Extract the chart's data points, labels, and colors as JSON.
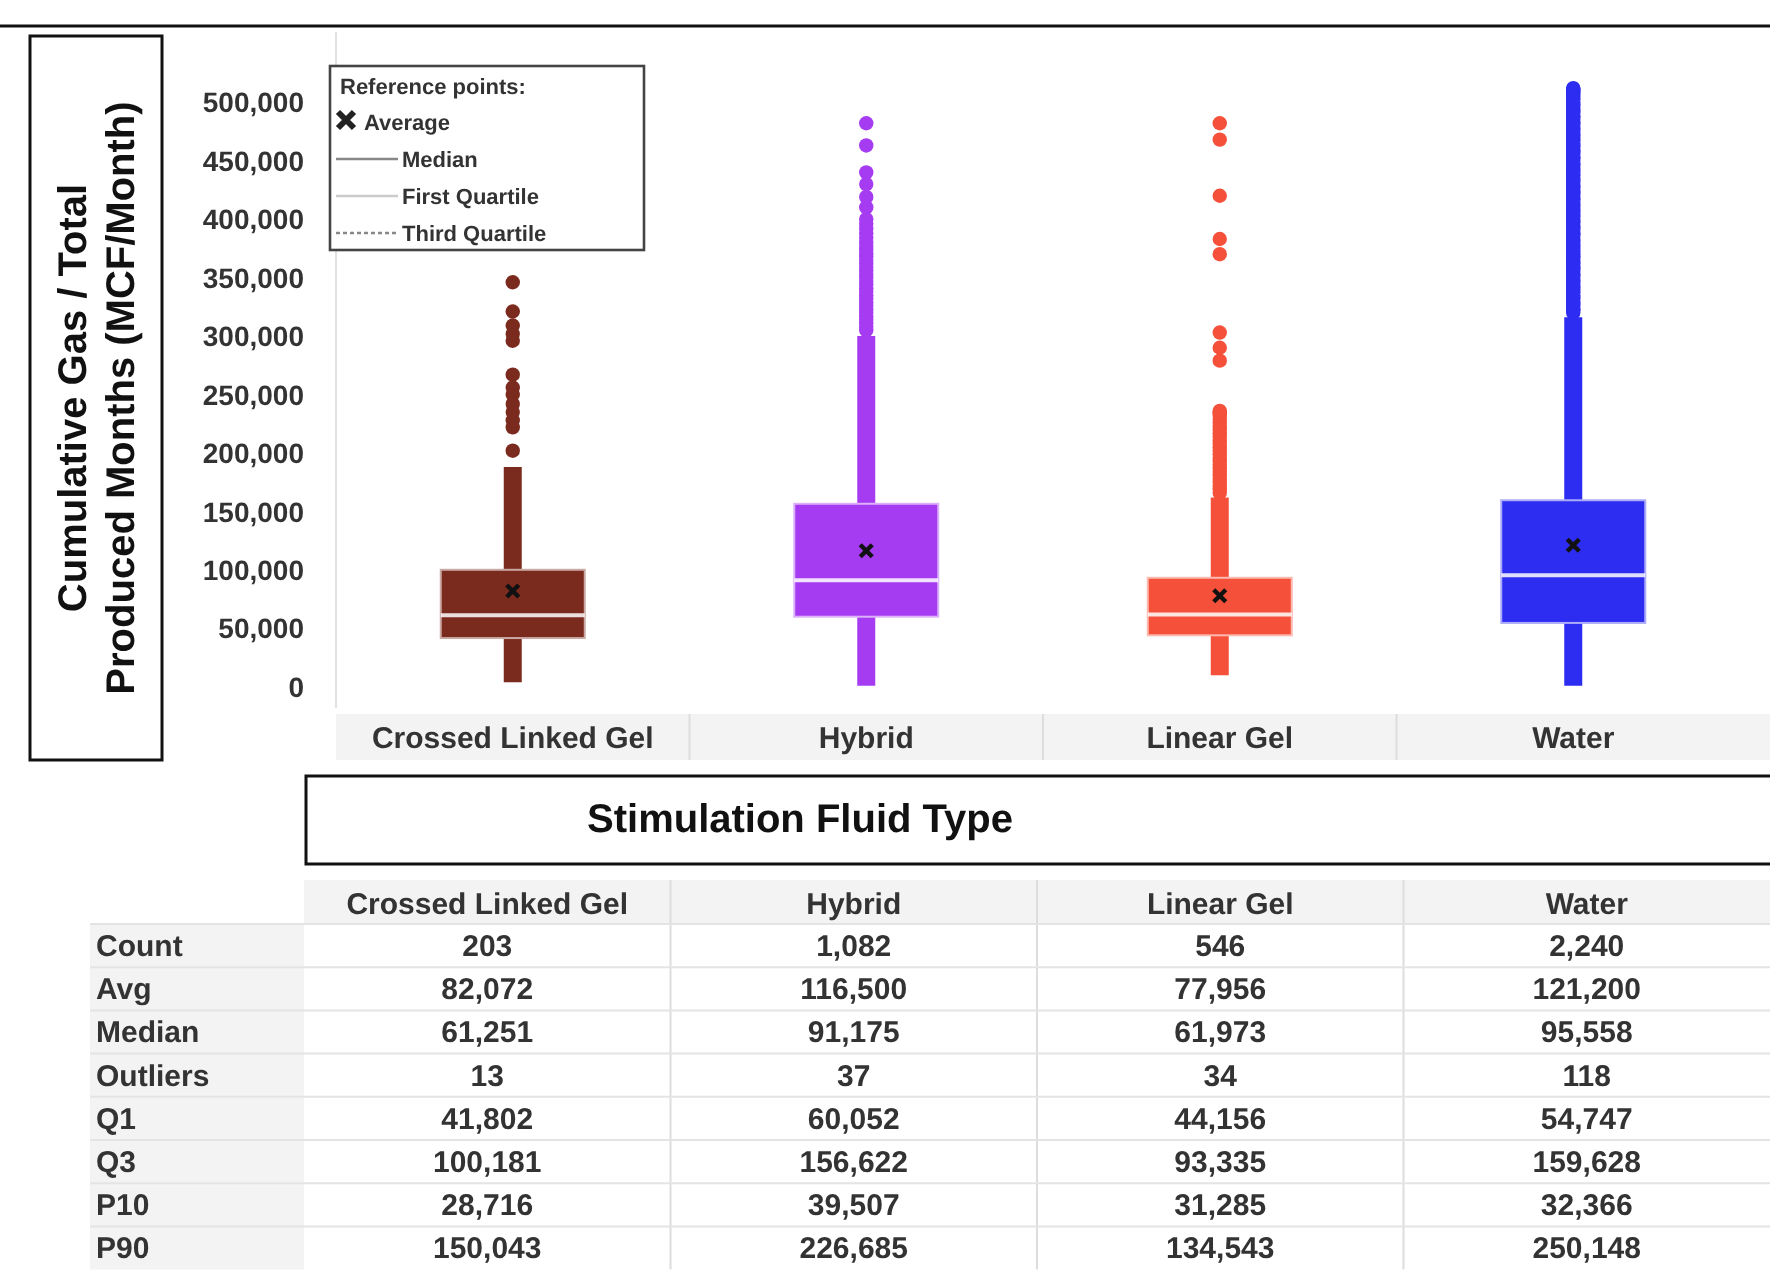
{
  "chart_data": [
    {
      "type": "box",
      "ylabel": "Cumulative Gas / Total Produced Months (MCF/Month)",
      "xlabel": "Stimulation Fluid Type",
      "legend_title": "Reference points:",
      "annotations": [
        "Average",
        "Median",
        "First Quartile",
        "Third Quartile"
      ],
      "categories": [
        "Crossed Linked Gel",
        "Hybrid",
        "Linear Gel",
        "Water"
      ],
      "colors": [
        "#7b2a1e",
        "#a63cf2",
        "#f5503a",
        "#2d2df2"
      ],
      "ylim": [
        -18000,
        560000
      ],
      "yticks": [
        {
          "value": 0,
          "label": "0"
        },
        {
          "value": 50000,
          "label": "50,000"
        },
        {
          "value": 100000,
          "label": "100,000"
        },
        {
          "value": 150000,
          "label": "150,000"
        },
        {
          "value": 200000,
          "label": "200,000"
        },
        {
          "value": 250000,
          "label": "250,000"
        },
        {
          "value": 300000,
          "label": "300,000"
        },
        {
          "value": 350000,
          "label": "350,000"
        },
        {
          "value": 400000,
          "label": "400,000"
        },
        {
          "value": 450000,
          "label": "450,000"
        },
        {
          "value": 500000,
          "label": "500,000"
        }
      ],
      "grid": false,
      "boxes": [
        {
          "low": 4000,
          "q1": 41802,
          "median": 61251,
          "q3": 100181,
          "high": 188000,
          "mean": 82072,
          "outliers": [
            202000,
            222000,
            228000,
            235000,
            242000,
            250000,
            256000,
            267000,
            296000,
            302000,
            309000,
            321000,
            346000
          ]
        },
        {
          "low": 1000,
          "q1": 60052,
          "median": 91175,
          "q3": 156622,
          "high": 300000,
          "mean": 116500,
          "outliers": [
            305000,
            308000,
            311000,
            314000,
            317000,
            320000,
            323000,
            326000,
            329000,
            332000,
            335000,
            338000,
            341000,
            344000,
            347000,
            350000,
            353000,
            356000,
            359000,
            362000,
            365000,
            368000,
            371000,
            374000,
            377000,
            380000,
            384000,
            388000,
            392000,
            396000,
            400000,
            410000,
            419000,
            430000,
            440000,
            463000,
            482000
          ]
        },
        {
          "low": 10000,
          "q1": 44156,
          "median": 61973,
          "q3": 93335,
          "high": 162000,
          "mean": 77956,
          "outliers": [
            166000,
            169000,
            172000,
            175000,
            178000,
            181000,
            184000,
            187000,
            190000,
            193000,
            196000,
            199000,
            202000,
            205000,
            208000,
            211000,
            214000,
            217000,
            220000,
            223000,
            226000,
            229000,
            232000,
            234000,
            235000,
            236000,
            279000,
            290000,
            303000,
            370000,
            383000,
            420000,
            468000,
            482000
          ]
        },
        {
          "low": 1000,
          "q1": 54747,
          "median": 95558,
          "q3": 159628,
          "high": 316000,
          "mean": 121200,
          "outliers": [
            320000,
            322000,
            323000,
            325000,
            327000,
            328000,
            330000,
            332000,
            333000,
            335000,
            337000,
            338000,
            340000,
            342000,
            343000,
            345000,
            347000,
            348000,
            350000,
            352000,
            353000,
            355000,
            357000,
            358000,
            360000,
            362000,
            363000,
            365000,
            367000,
            368000,
            370000,
            372000,
            373000,
            375000,
            377000,
            378000,
            380000,
            382000,
            383000,
            385000,
            387000,
            388000,
            390000,
            392000,
            393000,
            395000,
            397000,
            398000,
            400000,
            402000,
            403000,
            405000,
            407000,
            408000,
            410000,
            412000,
            413000,
            415000,
            417000,
            418000,
            420000,
            422000,
            423000,
            425000,
            427000,
            428000,
            430000,
            432000,
            433000,
            435000,
            437000,
            438000,
            440000,
            442000,
            443000,
            445000,
            447000,
            448000,
            450000,
            452000,
            453000,
            455000,
            457000,
            458000,
            460000,
            462000,
            463000,
            465000,
            467000,
            468000,
            470000,
            472000,
            473000,
            475000,
            477000,
            478000,
            480000,
            482000,
            483000,
            485000,
            487000,
            488000,
            490000,
            492000,
            493000,
            495000,
            497000,
            498000,
            500000,
            502000,
            503000,
            505000,
            507000,
            508000,
            509000,
            510000,
            511000,
            512000
          ]
        }
      ]
    },
    {
      "type": "other",
      "categories": [
        "Crossed Linked Gel",
        "Hybrid",
        "Linear Gel",
        "Water"
      ],
      "y_categories": [
        "Count",
        "Avg",
        "Median",
        "Outliers",
        "Q1",
        "Q3",
        "P10",
        "P90"
      ],
      "cell_labels": [
        [
          "203",
          "1,082",
          "546",
          "2,240"
        ],
        [
          "82,072",
          "116,500",
          "77,956",
          "121,200"
        ],
        [
          "61,251",
          "91,175",
          "61,973",
          "95,558"
        ],
        [
          "13",
          "37",
          "34",
          "118"
        ],
        [
          "41,802",
          "60,052",
          "44,156",
          "54,747"
        ],
        [
          "100,181",
          "156,622",
          "93,335",
          "159,628"
        ],
        [
          "28,716",
          "39,507",
          "31,285",
          "32,366"
        ],
        [
          "150,043",
          "226,685",
          "134,543",
          "250,148"
        ]
      ]
    }
  ]
}
